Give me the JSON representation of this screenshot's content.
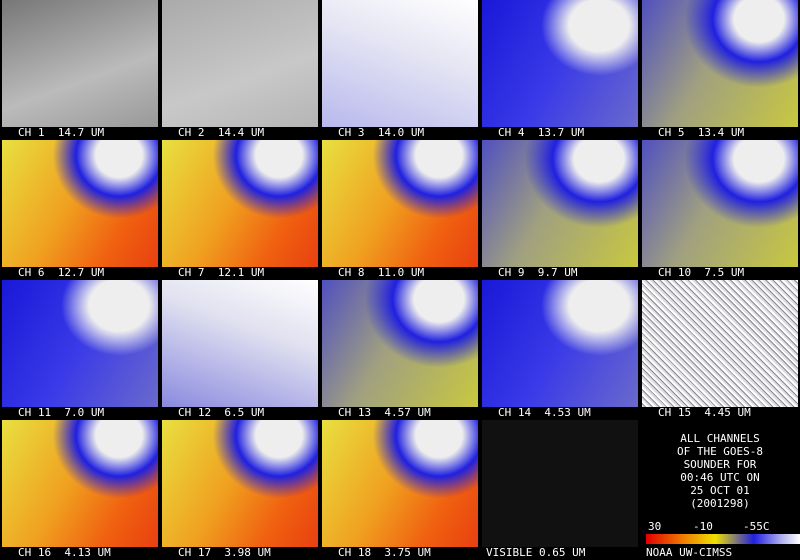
{
  "tiles": [
    {
      "label": "CH 1  14.7 UM"
    },
    {
      "label": "CH 2  14.4 UM"
    },
    {
      "label": "CH 3  14.0 UM"
    },
    {
      "label": "CH 4  13.7 UM"
    },
    {
      "label": "CH 5  13.4 UM"
    },
    {
      "label": "CH 6  12.7 UM"
    },
    {
      "label": "CH 7  12.1 UM"
    },
    {
      "label": "CH 8  11.0 UM"
    },
    {
      "label": "CH 9  9.7 UM"
    },
    {
      "label": "CH 10  7.5 UM"
    },
    {
      "label": "CH 11  7.0 UM"
    },
    {
      "label": "CH 12  6.5 UM"
    },
    {
      "label": "CH 13  4.57 UM"
    },
    {
      "label": "CH 14  4.53 UM"
    },
    {
      "label": "CH 15  4.45 UM"
    },
    {
      "label": "CH 16  4.13 UM"
    },
    {
      "label": "CH 17  3.98 UM"
    },
    {
      "label": "CH 18  3.75 UM"
    }
  ],
  "visible": {
    "label": "VISIBLE 0.65 UM"
  },
  "info": {
    "lines": [
      "ALL CHANNELS",
      "OF THE  GOES-8",
      "SOUNDER FOR",
      "00:46 UTC ON",
      "25 OCT 01",
      "(2001298)"
    ]
  },
  "colorbar": {
    "labels": [
      "30",
      "-10",
      "-55C"
    ]
  },
  "credit": "NOAA UW-CIMSS"
}
